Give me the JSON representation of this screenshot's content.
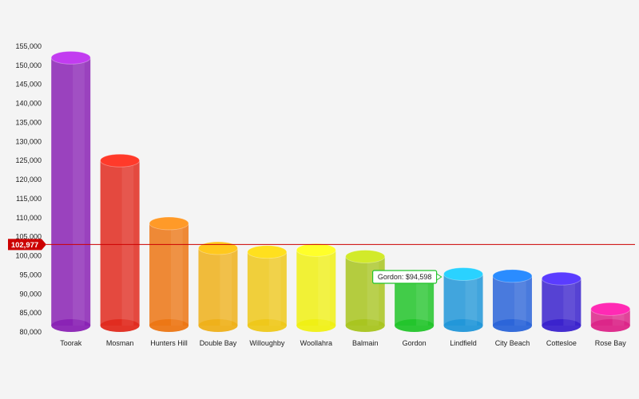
{
  "chart_data": {
    "type": "bar",
    "title": "",
    "xlabel": "",
    "ylabel": "",
    "ylim": [
      80000,
      155000
    ],
    "yticks": [
      80000,
      85000,
      90000,
      95000,
      100000,
      105000,
      110000,
      115000,
      120000,
      125000,
      130000,
      135000,
      140000,
      145000,
      150000,
      155000
    ],
    "ytick_labels": [
      "80,000",
      "85,000",
      "90,000",
      "95,000",
      "100,000",
      "105,000",
      "110,000",
      "115,000",
      "120,000",
      "125,000",
      "130,000",
      "135,000",
      "140,000",
      "145,000",
      "150,000",
      "155,000"
    ],
    "categories": [
      "Toorak",
      "Mosman",
      "Hunters Hill",
      "Double Bay",
      "Willoughby",
      "Woollahra",
      "Balmain",
      "Gordon",
      "Lindfield",
      "City Beach",
      "Cottesloe",
      "Rose Bay"
    ],
    "values": [
      152000,
      125000,
      108500,
      102000,
      101000,
      101500,
      99800,
      94598,
      95200,
      94700,
      94000,
      86000
    ],
    "colors": [
      "#8a22b4",
      "#e02a1e",
      "#ec7614",
      "#eeb01a",
      "#eec81a",
      "#f0f014",
      "#a8c41e",
      "#22c42a",
      "#2196d8",
      "#2a64d8",
      "#3a22cc",
      "#dc2488"
    ],
    "cap_colors": [
      "#c23cf0",
      "#ff3a2a",
      "#ff9a28",
      "#ffc81e",
      "#ffe01e",
      "#ffff2a",
      "#d2ea2a",
      "#2aee34",
      "#2ad2ff",
      "#2a8cff",
      "#5a3cff",
      "#ff2ab4"
    ],
    "average_line": {
      "value": 102977,
      "label": "102,977",
      "color": "#cc0000"
    },
    "tooltip": {
      "category": "Gordon",
      "text": "Gordon: $94,598"
    },
    "grid": false,
    "legend": "none"
  }
}
